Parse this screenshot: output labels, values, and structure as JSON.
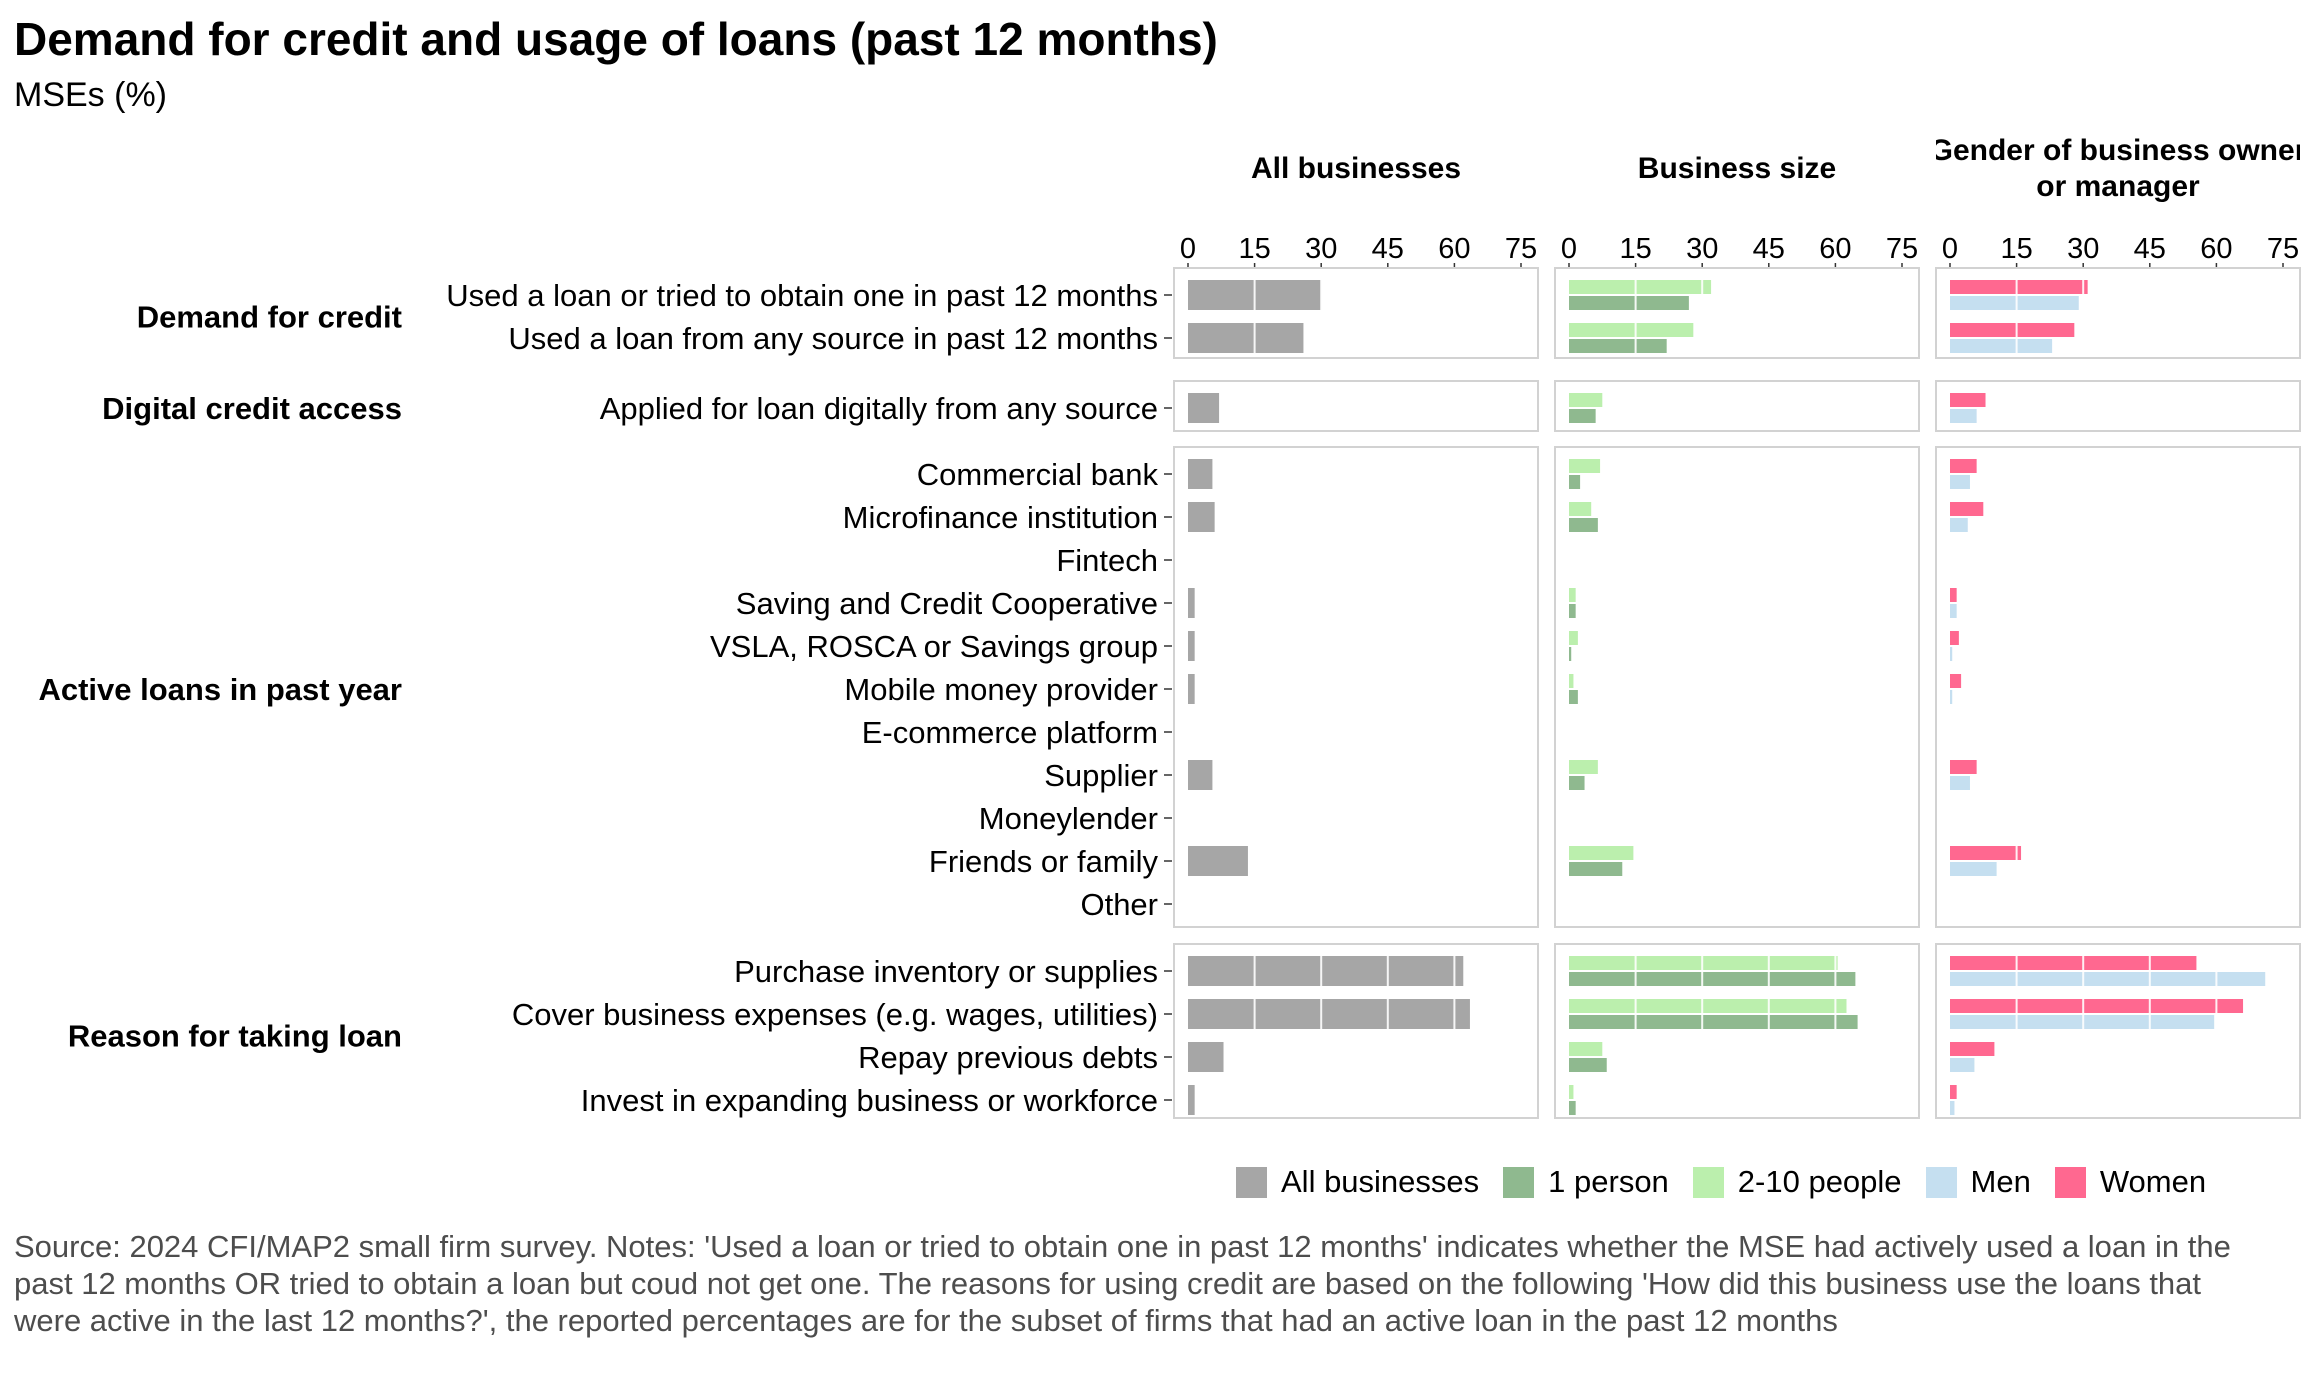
{
  "title": "Demand for credit and usage of loans (past 12 months)",
  "subtitle": "MSEs (%)",
  "chart_data": {
    "type": "bar",
    "orientation": "horizontal",
    "stacked": false,
    "facets": [
      "All businesses",
      "Business size",
      "Gender of business owner or manager"
    ],
    "xlim": [
      0,
      75
    ],
    "xticks": [
      0,
      15,
      30,
      45,
      60,
      75
    ],
    "grid": true,
    "legend_position": "bottom-right",
    "groups": [
      {
        "label": "Demand for credit",
        "rows": [
          {
            "label": "Used a loan or tried to obtain one in past 12 months",
            "all": 30,
            "one_person": 27,
            "two_ten": 32,
            "men": 29,
            "women": 31
          },
          {
            "label": "Used a loan from any source in past 12 months",
            "all": 26,
            "one_person": 22,
            "two_ten": 28,
            "men": 23,
            "women": 28
          }
        ]
      },
      {
        "label": "Digital credit access",
        "rows": [
          {
            "label": "Applied for loan digitally from any source",
            "all": 7,
            "one_person": 6,
            "two_ten": 7.5,
            "men": 6,
            "women": 8
          }
        ]
      },
      {
        "label": "Active loans in past year",
        "rows": [
          {
            "label": "Commercial bank",
            "all": 5.5,
            "one_person": 2.5,
            "two_ten": 7,
            "men": 4.5,
            "women": 6
          },
          {
            "label": "Microfinance institution",
            "all": 6,
            "one_person": 6.5,
            "two_ten": 5,
            "men": 4,
            "women": 7.5
          },
          {
            "label": "Fintech",
            "all": 0,
            "one_person": 0,
            "two_ten": 0,
            "men": 0,
            "women": 0
          },
          {
            "label": "Saving and Credit Cooperative",
            "all": 1.5,
            "one_person": 1.5,
            "two_ten": 1.5,
            "men": 1.5,
            "women": 1.5
          },
          {
            "label": "VSLA, ROSCA or Savings group",
            "all": 1.5,
            "one_person": 0.5,
            "two_ten": 2,
            "men": 0.5,
            "women": 2
          },
          {
            "label": "Mobile money provider",
            "all": 1.5,
            "one_person": 2,
            "two_ten": 1,
            "men": 0.5,
            "women": 2.5
          },
          {
            "label": "E-commerce platform",
            "all": 0,
            "one_person": 0,
            "two_ten": 0,
            "men": 0,
            "women": 0
          },
          {
            "label": "Supplier",
            "all": 5.5,
            "one_person": 3.5,
            "two_ten": 6.5,
            "men": 4.5,
            "women": 6
          },
          {
            "label": "Moneylender",
            "all": 0,
            "one_person": 0,
            "two_ten": 0,
            "men": 0,
            "women": 0
          },
          {
            "label": "Friends or family",
            "all": 13.5,
            "one_person": 12,
            "two_ten": 14.5,
            "men": 10.5,
            "women": 16
          },
          {
            "label": "Other",
            "all": 0,
            "one_person": 0,
            "two_ten": 0,
            "men": 0,
            "women": 0
          }
        ]
      },
      {
        "label": "Reason for taking loan",
        "rows": [
          {
            "label": "Purchase inventory or supplies",
            "all": 62,
            "one_person": 64.5,
            "two_ten": 60.5,
            "men": 71,
            "women": 55.5
          },
          {
            "label": "Cover business expenses (e.g. wages, utilities)",
            "all": 63.5,
            "one_person": 65,
            "two_ten": 62.5,
            "men": 59.5,
            "women": 66
          },
          {
            "label": "Repay previous debts",
            "all": 8,
            "one_person": 8.5,
            "two_ten": 7.5,
            "men": 5.5,
            "women": 10
          },
          {
            "label": "Invest in expanding business or workforce",
            "all": 1.5,
            "one_person": 1.5,
            "two_ten": 1,
            "men": 1,
            "women": 1.5
          }
        ]
      }
    ],
    "legend": [
      {
        "key": "all",
        "label": "All businesses",
        "color": "#a6a6a6"
      },
      {
        "key": "one_person",
        "label": "1 person",
        "color": "#8fb98f"
      },
      {
        "key": "two_ten",
        "label": "2-10 people",
        "color": "#bbefad"
      },
      {
        "key": "men",
        "label": "Men",
        "color": "#c5dff0"
      },
      {
        "key": "women",
        "label": "Women",
        "color": "#ff6890"
      }
    ]
  },
  "source": "Source: 2024 CFI/MAP2 small firm survey. Notes: 'Used a loan or tried to obtain one in past 12 months' indicates whether the MSE had actively used a loan in the past 12 months OR tried to obtain a loan but coud not get one. The reasons for using credit are based on the following 'How did this business use the loans that were active in the last 12 months?', the reported percentages are for the subset of firms that had an active loan in the past 12 months"
}
